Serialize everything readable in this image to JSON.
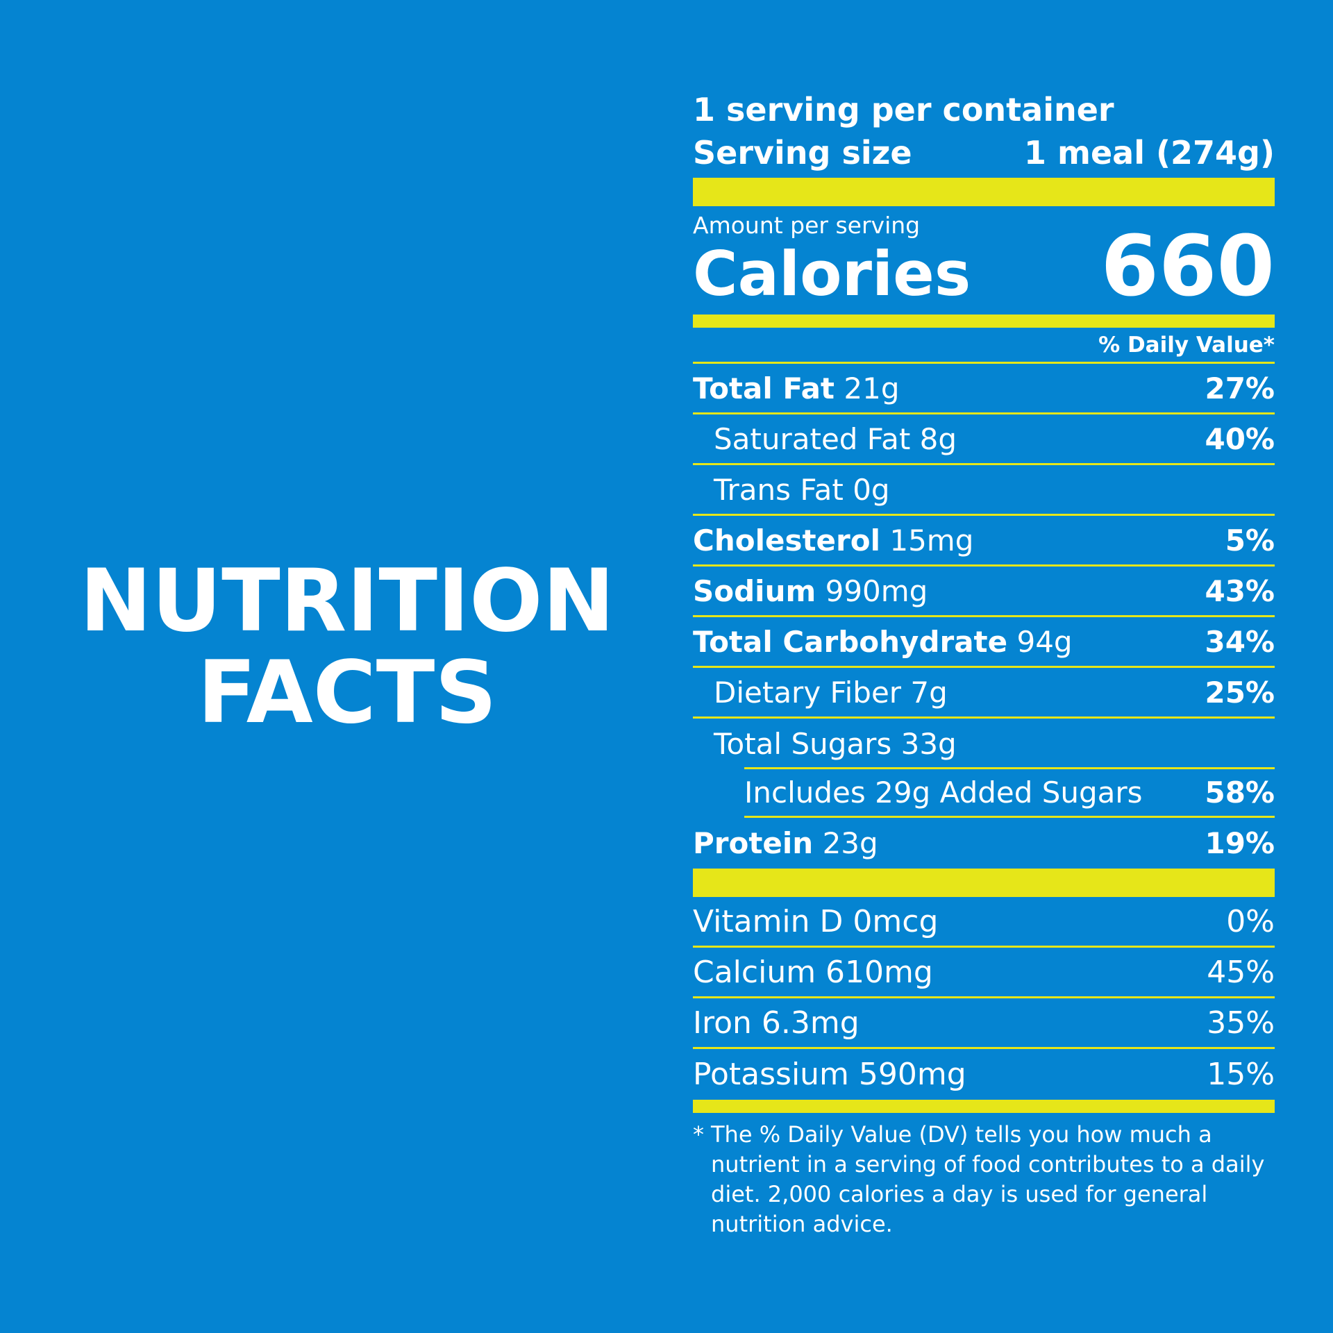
{
  "headline": {
    "line1": "NUTRITION",
    "line2": "FACTS"
  },
  "label": {
    "servings_per_container": "1 serving per container",
    "serving_size_label": "Serving size",
    "serving_size_value": "1 meal (274g)",
    "amount_per_serving": "Amount per serving",
    "calories_label": "Calories",
    "calories_value": "660",
    "dv_header": "% Daily Value*",
    "nutrients": [
      {
        "name": "Total Fat",
        "amount": "21g",
        "dv": "27%"
      },
      {
        "name": "Saturated Fat 8g",
        "amount": "",
        "dv": "40%"
      },
      {
        "name": "Trans Fat 0g",
        "amount": "",
        "dv": ""
      },
      {
        "name": "Cholesterol",
        "amount": "15mg",
        "dv": "5%"
      },
      {
        "name": "Sodium",
        "amount": "990mg",
        "dv": "43%"
      },
      {
        "name": "Total Carbohydrate",
        "amount": "94g",
        "dv": "34%"
      },
      {
        "name": "Dietary Fiber 7g",
        "amount": "",
        "dv": "25%"
      },
      {
        "name": "Total Sugars 33g",
        "amount": "",
        "dv": ""
      },
      {
        "name": "Includes 29g Added Sugars",
        "amount": "",
        "dv": "58%"
      },
      {
        "name": "Protein",
        "amount": "23g",
        "dv": "19%"
      }
    ],
    "vitamins": [
      {
        "name": "Vitamin D 0mcg",
        "dv": "0%"
      },
      {
        "name": "Calcium 610mg",
        "dv": "45%"
      },
      {
        "name": "Iron 6.3mg",
        "dv": "35%"
      },
      {
        "name": "Potassium 590mg",
        "dv": "15%"
      }
    ],
    "footnote_star": "*",
    "footnote_text": "The % Daily Value (DV) tells you how much a nutrient in a serving of food contributes to a daily diet. 2,000 calories a day is used for general nutrition advice."
  },
  "colors": {
    "background": "#0584d1",
    "accent": "#e6e619",
    "text": "#ffffff"
  }
}
